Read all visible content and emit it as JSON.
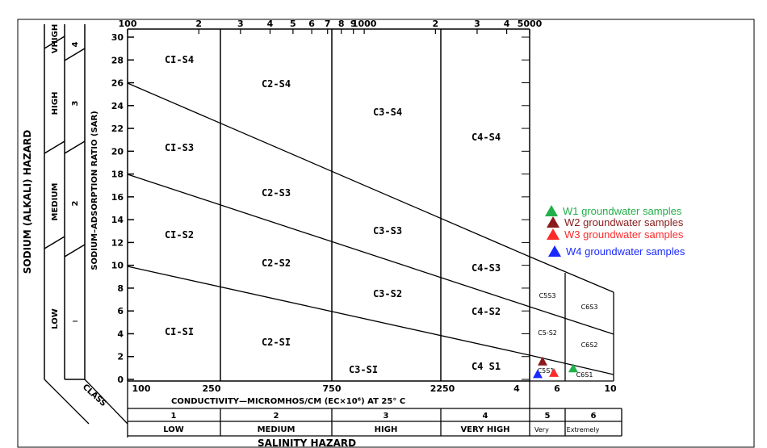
{
  "chart_data": {
    "type": "scatter",
    "title": "",
    "x_axis": {
      "label": "CONDUCTIVITY—MICROMHOS/CM   (EC×10⁶) AT 25° C",
      "scale": "log",
      "range": [
        100,
        5000
      ],
      "top_tick_labels": [
        "100",
        "2",
        "3",
        "4",
        "5",
        "6",
        "7",
        "8",
        "9",
        "1000",
        "2",
        "3",
        "4",
        "5000"
      ],
      "bottom_tick_labels": [
        "100",
        "250",
        "750",
        "2250",
        "4",
        "6",
        "10"
      ],
      "extension_tick_labels": [
        "4",
        "6",
        "10"
      ]
    },
    "y_axis": {
      "label": "SODIUM–ADSORPTION RATIO (SAR)",
      "range": [
        0,
        30
      ],
      "tick_labels": [
        "0",
        "2",
        "4",
        "6",
        "8",
        "10",
        "12",
        "14",
        "16",
        "18",
        "20",
        "22",
        "24",
        "26",
        "28",
        "30"
      ]
    },
    "sodium_hazard": {
      "title": "SODIUM (ALKALI) HAZARD",
      "levels": [
        {
          "name": "LOW",
          "class": "1"
        },
        {
          "name": "MEDIUM",
          "class": "2"
        },
        {
          "name": "HIGH",
          "class": "3"
        },
        {
          "name": "VHIGH",
          "class": "4"
        }
      ]
    },
    "salinity_hazard": {
      "title": "SALINITY HAZARD",
      "class_label": "CLASS",
      "classes": [
        {
          "num": "1",
          "name": "LOW"
        },
        {
          "num": "2",
          "name": "MEDIUM"
        },
        {
          "num": "3",
          "name": "HIGH"
        },
        {
          "num": "4",
          "name": "VERY HIGH"
        },
        {
          "num": "5",
          "name": "Very"
        },
        {
          "num": "6",
          "name": "Extremely"
        }
      ]
    },
    "zones": [
      {
        "label": "CI-S4"
      },
      {
        "label": "CI-S3"
      },
      {
        "label": "CI-S2"
      },
      {
        "label": "CI-SI"
      },
      {
        "label": "C2-S4"
      },
      {
        "label": "C2-S3"
      },
      {
        "label": "C2-S2"
      },
      {
        "label": "C2-SI"
      },
      {
        "label": "C3-S4"
      },
      {
        "label": "C3-S3"
      },
      {
        "label": "C3-S2"
      },
      {
        "label": "C3-SI"
      },
      {
        "label": "C4-S4"
      },
      {
        "label": "C4-S3"
      },
      {
        "label": "C4-S2"
      },
      {
        "label": "C4 S1"
      },
      {
        "label": "C5S3"
      },
      {
        "label": "C5-S2"
      },
      {
        "label": "C5S1"
      },
      {
        "label": "C6S3"
      },
      {
        "label": "C6S2"
      },
      {
        "label": "C6S1"
      }
    ],
    "series": [
      {
        "name": "W1 groundwater samples",
        "color": "#22b04a",
        "points": [
          {
            "ec": 6600,
            "sar": 0.9
          }
        ]
      },
      {
        "name": "W2 groundwater samples",
        "color": "#8b1a1a",
        "points": [
          {
            "ec": 5000,
            "sar": 1.5
          }
        ]
      },
      {
        "name": "W3 groundwater samples",
        "color": "#ff2a2a",
        "points": [
          {
            "ec": 5600,
            "sar": 0.5
          }
        ]
      },
      {
        "name": "W4 groundwater samples",
        "color": "#1a2aff",
        "points": [
          {
            "ec": 4600,
            "sar": 0.4
          }
        ]
      }
    ],
    "legend_position": "right"
  }
}
